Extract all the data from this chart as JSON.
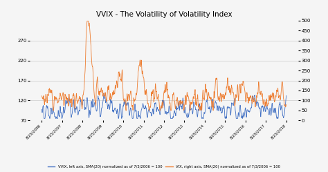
{
  "title": "VVIX - The Volatility of Volatility Index",
  "title_fontsize": 7.5,
  "left_ylim": [
    70,
    320
  ],
  "right_ylim": [
    0,
    500
  ],
  "left_yticks": [
    70,
    120,
    170,
    220,
    270
  ],
  "right_yticks": [
    0,
    50,
    100,
    150,
    200,
    250,
    300,
    350,
    400,
    450,
    500
  ],
  "xtick_labels": [
    "8/25/2006",
    "8/15/2007",
    "8/25/2008",
    "8/25/2009",
    "8/28/2010",
    "8/25/2011",
    "8/25/2012",
    "8/25/2013",
    "8/25/2014",
    "8/25/2015",
    "8/25/2016",
    "8/25/2017",
    "8/25/2018"
  ],
  "vvix_color": "#4472C4",
  "vix_color": "#ED7D31",
  "legend_labels": [
    "VVIX, left axis, SMA(20) normalized as of 7/3/2006 = 100",
    "VIX, right axis, SMA(20) normalized as of 7/3/2006 = 100"
  ],
  "background_color": "#f5f5f5",
  "grid_color": "#cccccc",
  "n_points": 3150,
  "seed": 12
}
